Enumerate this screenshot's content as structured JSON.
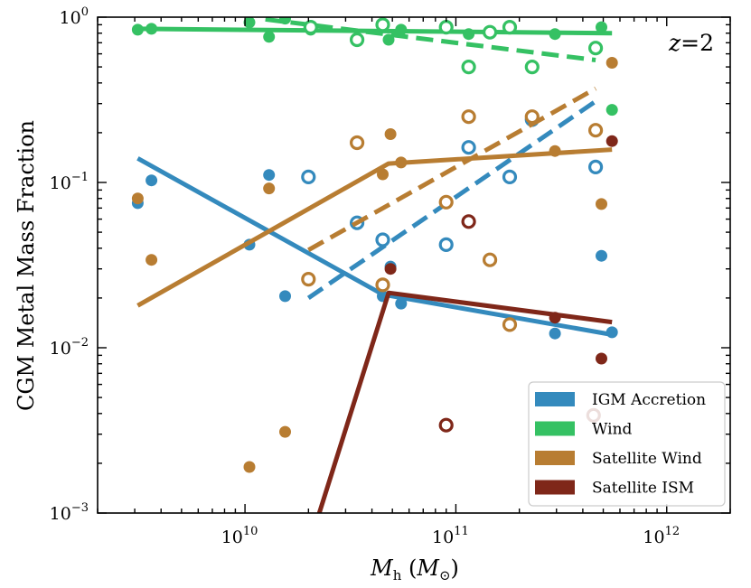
{
  "chart_data": {
    "type": "scatter",
    "xlabel": "M_h (M_⊙)",
    "ylabel": "CGM Metal Mass Fraction",
    "x_scale": "log",
    "y_scale": "log",
    "xlim": [
      2000000000.0,
      2000000000000.0
    ],
    "ylim": [
      0.001,
      1.0
    ],
    "x_major_ticks": [
      10000000000.0,
      100000000000.0,
      1000000000000.0
    ],
    "x_tick_labels": [
      {
        "base": "10",
        "exp": "10"
      },
      {
        "base": "10",
        "exp": "11"
      },
      {
        "base": "10",
        "exp": "12"
      }
    ],
    "y_major_ticks": [
      0.001,
      0.01,
      0.1,
      1.0
    ],
    "y_tick_labels": [
      {
        "base": "10",
        "exp": "−3"
      },
      {
        "base": "10",
        "exp": "−2"
      },
      {
        "base": "10",
        "exp": "−1"
      },
      {
        "base": "10",
        "exp": "0"
      }
    ],
    "annotation": {
      "var": "z",
      "eq": "=",
      "val": "2"
    },
    "legend": {
      "position": "lower right"
    },
    "grid": false,
    "series": [
      {
        "name": "IGM Accretion",
        "color": "#348abd",
        "filled_points": [
          [
            3100000000.0,
            0.075
          ],
          [
            3600000000.0,
            0.103
          ],
          [
            10500000000.0,
            0.042
          ],
          [
            13000000000.0,
            0.111
          ],
          [
            15500000000.0,
            0.0205
          ],
          [
            45000000000.0,
            0.0205
          ],
          [
            49000000000.0,
            0.031
          ],
          [
            55000000000.0,
            0.0185
          ],
          [
            295000000000.0,
            0.0122
          ],
          [
            490000000000.0,
            0.036
          ],
          [
            550000000000.0,
            0.0124
          ]
        ],
        "open_points": [
          [
            20000000000.0,
            0.108
          ],
          [
            34000000000.0,
            0.057
          ],
          [
            45000000000.0,
            0.045
          ],
          [
            90000000000.0,
            0.042
          ],
          [
            115000000000.0,
            0.163
          ],
          [
            180000000000.0,
            0.108
          ],
          [
            230000000000.0,
            0.24
          ],
          [
            460000000000.0,
            0.124
          ]
        ],
        "solid_line": [
          [
            3100000000.0,
            0.14
          ],
          [
            45000000000.0,
            0.021
          ],
          [
            550000000000.0,
            0.012
          ]
        ],
        "dashed_line": [
          [
            20000000000.0,
            0.02
          ],
          [
            460000000000.0,
            0.31
          ]
        ]
      },
      {
        "name": "Wind",
        "color": "#35c163",
        "filled_points": [
          [
            3100000000.0,
            0.84
          ],
          [
            3600000000.0,
            0.85
          ],
          [
            10500000000.0,
            0.93
          ],
          [
            13000000000.0,
            0.76
          ],
          [
            15500000000.0,
            0.98
          ],
          [
            20500000000.0,
            0.84
          ],
          [
            48000000000.0,
            0.73
          ],
          [
            55000000000.0,
            0.84
          ],
          [
            115000000000.0,
            0.79
          ],
          [
            295000000000.0,
            0.79
          ],
          [
            490000000000.0,
            0.87
          ],
          [
            550000000000.0,
            0.275
          ]
        ],
        "open_points": [
          [
            20500000000.0,
            0.87
          ],
          [
            34000000000.0,
            0.73
          ],
          [
            45000000000.0,
            0.9
          ],
          [
            90000000000.0,
            0.87
          ],
          [
            115000000000.0,
            0.5
          ],
          [
            145000000000.0,
            0.81
          ],
          [
            180000000000.0,
            0.87
          ],
          [
            230000000000.0,
            0.5
          ],
          [
            460000000000.0,
            0.65
          ]
        ],
        "solid_line": [
          [
            3100000000.0,
            0.85
          ],
          [
            550000000000.0,
            0.8
          ]
        ],
        "dashed_line": [
          [
            12500000000.0,
            0.97
          ],
          [
            460000000000.0,
            0.55
          ]
        ]
      },
      {
        "name": "Satellite Wind",
        "color": "#b87d32",
        "filled_points": [
          [
            3100000000.0,
            0.08
          ],
          [
            3600000000.0,
            0.034
          ],
          [
            10500000000.0,
            0.0019
          ],
          [
            13000000000.0,
            0.092
          ],
          [
            15500000000.0,
            0.0031
          ],
          [
            45000000000.0,
            0.112
          ],
          [
            49000000000.0,
            0.196
          ],
          [
            55000000000.0,
            0.132
          ],
          [
            295000000000.0,
            0.155
          ],
          [
            490000000000.0,
            0.074
          ],
          [
            550000000000.0,
            0.53
          ]
        ],
        "open_points": [
          [
            20000000000.0,
            0.026
          ],
          [
            34000000000.0,
            0.174
          ],
          [
            45000000000.0,
            0.024
          ],
          [
            90000000000.0,
            0.076
          ],
          [
            115000000000.0,
            0.25
          ],
          [
            145000000000.0,
            0.034
          ],
          [
            180000000000.0,
            0.0138
          ],
          [
            230000000000.0,
            0.25
          ],
          [
            460000000000.0,
            0.207
          ]
        ],
        "solid_line": [
          [
            3100000000.0,
            0.018
          ],
          [
            48000000000.0,
            0.13
          ],
          [
            550000000000.0,
            0.158
          ]
        ],
        "dashed_line": [
          [
            20000000000.0,
            0.039
          ],
          [
            460000000000.0,
            0.37
          ]
        ]
      },
      {
        "name": "Satellite ISM",
        "color": "#7f2719",
        "filled_points": [
          [
            49000000000.0,
            0.03
          ],
          [
            295000000000.0,
            0.0152
          ],
          [
            490000000000.0,
            0.0086
          ],
          [
            550000000000.0,
            0.178
          ]
        ],
        "open_points": [
          [
            90000000000.0,
            0.0034
          ],
          [
            115000000000.0,
            0.058
          ],
          [
            450000000000.0,
            0.0039
          ]
        ],
        "solid_line": [
          [
            22500000000.0,
            0.001
          ],
          [
            48000000000.0,
            0.0215
          ],
          [
            550000000000.0,
            0.0143
          ]
        ],
        "dashed_line": []
      }
    ]
  }
}
